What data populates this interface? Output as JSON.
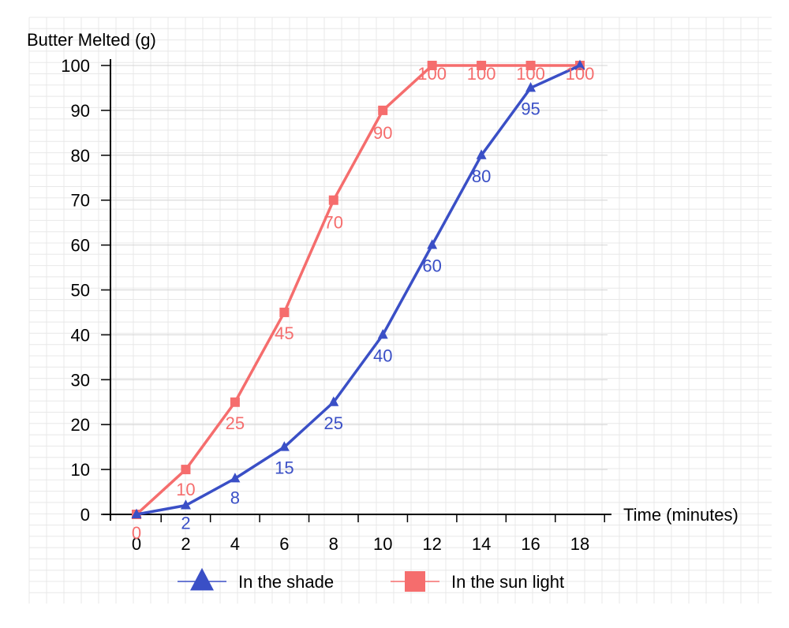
{
  "chart_data": {
    "type": "line",
    "ylabel": "Butter Melted (g)",
    "xlabel": "Time (minutes)",
    "x": [
      0,
      2,
      4,
      6,
      8,
      10,
      12,
      14,
      16,
      18
    ],
    "x_ticks": [
      "0",
      "2",
      "4",
      "6",
      "8",
      "10",
      "12",
      "14",
      "16",
      "18"
    ],
    "y_ticks": [
      "0",
      "10",
      "20",
      "30",
      "40",
      "50",
      "60",
      "70",
      "80",
      "90",
      "100"
    ],
    "xlim": [
      0,
      18
    ],
    "ylim": [
      0,
      100
    ],
    "grid": true,
    "legend_position": "bottom",
    "series": [
      {
        "name": "In the shade",
        "color": "#3a4fc6",
        "marker": "triangle",
        "values": [
          0,
          2,
          8,
          15,
          25,
          40,
          60,
          80,
          95,
          100
        ],
        "labels": [
          "",
          "2",
          "8",
          "15",
          "25",
          "40",
          "60",
          "80",
          "95",
          ""
        ]
      },
      {
        "name": "In the sun light",
        "color": "#f56d6d",
        "marker": "square",
        "values": [
          0,
          10,
          25,
          45,
          70,
          90,
          100,
          100,
          100,
          100
        ],
        "labels": [
          "0",
          "10",
          "25",
          "45",
          "70",
          "90",
          "100",
          "100",
          "100",
          "100"
        ]
      }
    ]
  }
}
